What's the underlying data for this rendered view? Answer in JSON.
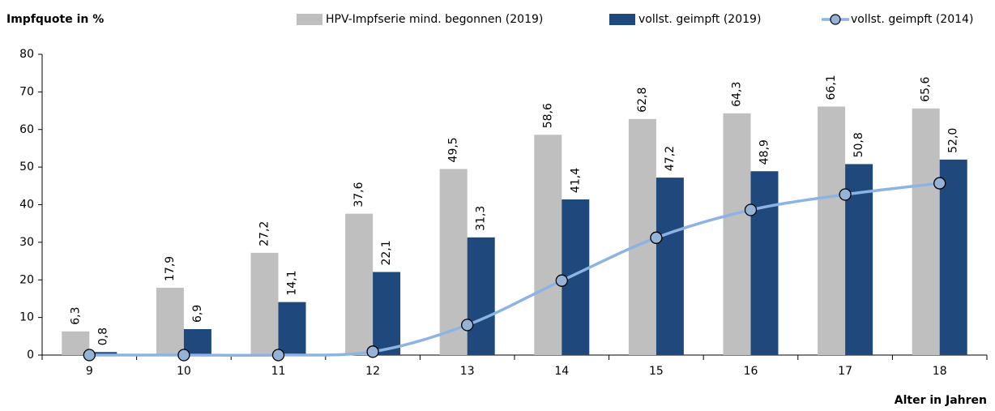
{
  "chart_data": {
    "type": "bar-line",
    "title": "Impfquote in %",
    "x_label": "Alter in Jahren",
    "categories": [
      "9",
      "10",
      "11",
      "12",
      "13",
      "14",
      "15",
      "16",
      "17",
      "18"
    ],
    "series": [
      {
        "name": "HPV-Impfserie mind. begonnen (2019)",
        "type": "bar",
        "color": "#bfbfbf",
        "values": [
          6.3,
          17.9,
          27.2,
          37.6,
          49.5,
          58.6,
          62.8,
          64.3,
          66.1,
          65.6
        ],
        "value_labels": [
          "6,3",
          "17,9",
          "27,2",
          "37,6",
          "49,5",
          "58,6",
          "62,8",
          "64,3",
          "66,1",
          "65,6"
        ]
      },
      {
        "name": "vollst. geimpft (2019)",
        "type": "bar",
        "color": "#1f497d",
        "values": [
          0.8,
          6.9,
          14.1,
          22.1,
          31.3,
          41.4,
          47.2,
          48.9,
          50.8,
          52.0
        ],
        "value_labels": [
          "0,8",
          "6,9",
          "14,1",
          "22,1",
          "31,3",
          "41,4",
          "47,2",
          "48,9",
          "50,8",
          "52,0"
        ]
      },
      {
        "name": "vollst. geimpft (2014)",
        "type": "line",
        "color": "#8db3e2",
        "values": [
          0,
          0,
          0,
          0.9,
          8.0,
          19.8,
          31.2,
          38.6,
          42.7,
          45.7
        ]
      }
    ],
    "ylim": [
      0,
      80
    ],
    "yticks": [
      0,
      10,
      20,
      30,
      40,
      50,
      60,
      70,
      80
    ],
    "grid": false
  }
}
